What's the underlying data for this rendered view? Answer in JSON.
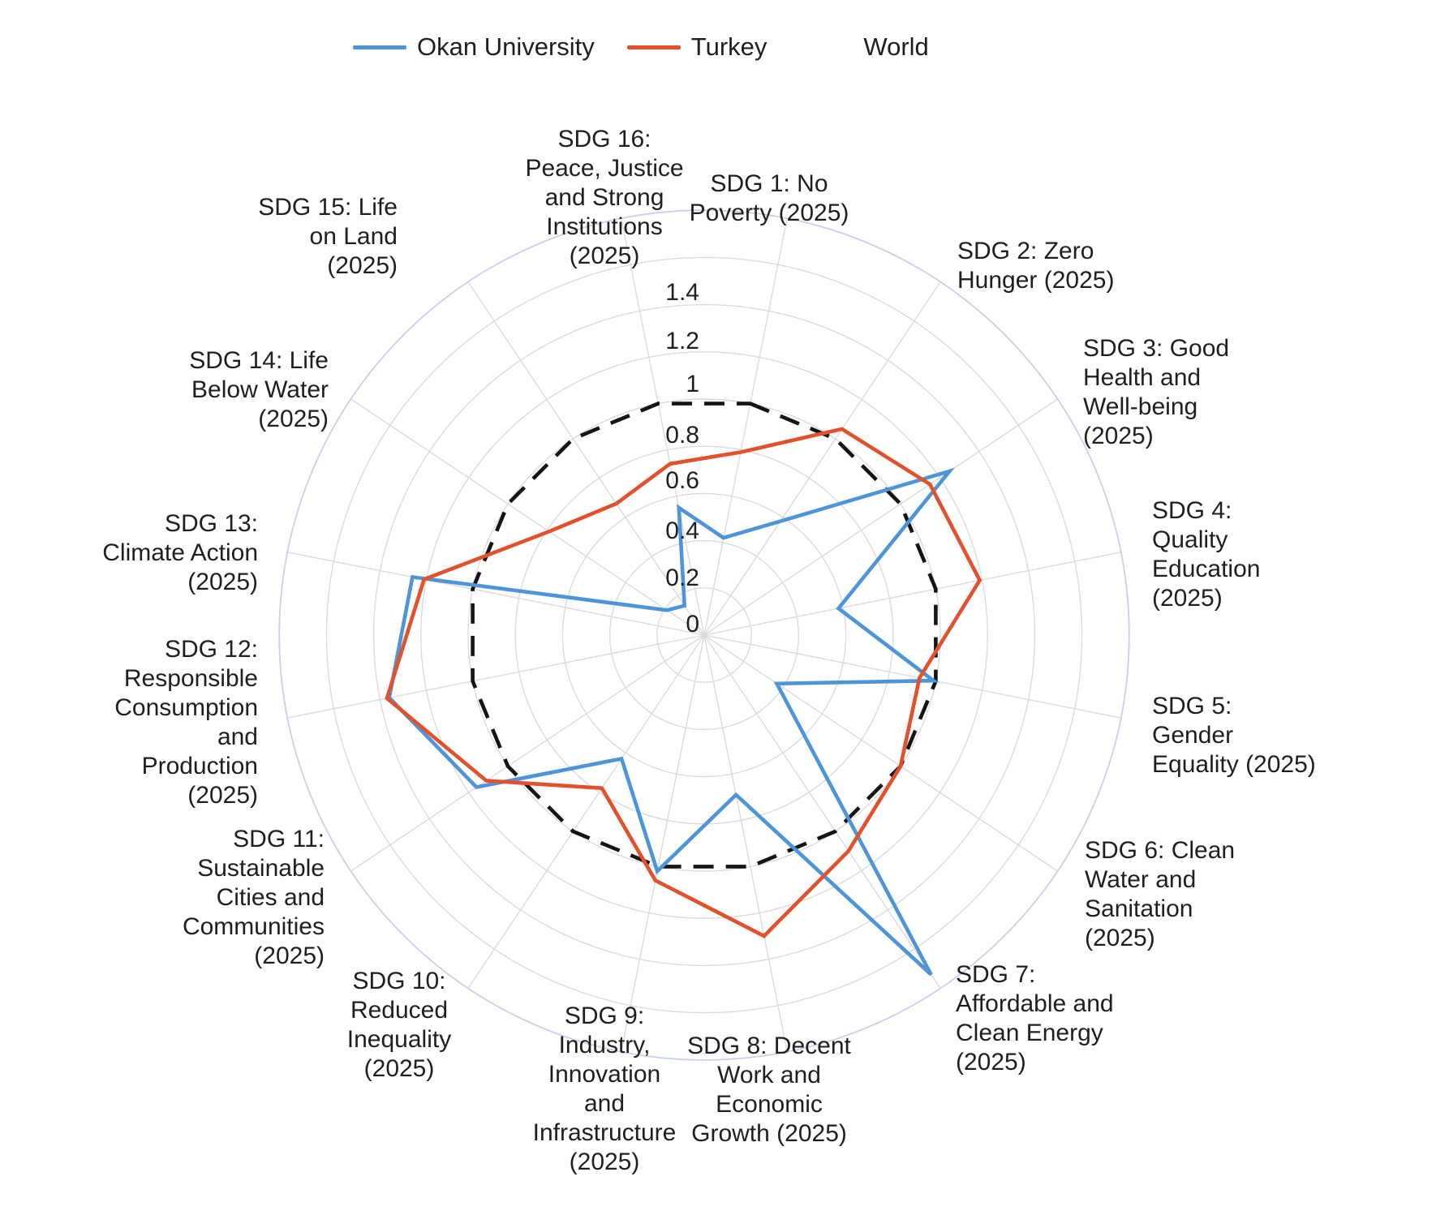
{
  "chart_data": {
    "type": "radar",
    "title": "",
    "legend_position": "top",
    "grid": true,
    "angular_offset_deg": 11.25,
    "r_axis": {
      "min": 0,
      "max": 1.8,
      "tick_step": 0.2,
      "tick_labels": [
        "0",
        "0.2",
        "0.4",
        "0.6",
        "0.8",
        "1",
        "1.2",
        "1.4"
      ]
    },
    "categories": [
      "SDG 1: No\nPoverty (2025)",
      "SDG 2: Zero\nHunger (2025)",
      "SDG 3: Good\nHealth and\nWell-being\n(2025)",
      "SDG 4:\nQuality\nEducation\n(2025)",
      "SDG 5:\nGender\nEquality (2025)",
      "SDG 6: Clean\nWater and\nSanitation\n(2025)",
      "SDG 7:\nAffordable and\nClean Energy\n(2025)",
      "SDG 8: Decent\nWork and\nEconomic\nGrowth (2025)",
      "SDG 9:\nIndustry,\nInnovation\nand\nInfrastructure\n(2025)",
      "SDG 10:\nReduced\nInequality\n(2025)",
      "SDG 11:\nSustainable\nCities and\nCommunities\n(2025)",
      "SDG 12:\nResponsible\nConsumption\nand\nProduction\n(2025)",
      "SDG 13:\nClimate Action\n(2025)",
      "SDG 14: Life\nBelow Water\n(2025)",
      "SDG 15: Life\non Land\n(2025)",
      "SDG 16:\nPeace, Justice\nand Strong\nInstitutions\n(2025)"
    ],
    "series": [
      {
        "name": "Okan University",
        "color": "#4D95D8",
        "line_dash": "solid",
        "values": [
          0.42,
          0.58,
          1.25,
          0.58,
          0.99,
          0.37,
          1.73,
          0.69,
          1.02,
          0.63,
          1.16,
          1.36,
          1.26,
          0.19,
          0.15,
          0.55
        ]
      },
      {
        "name": "Turkey",
        "color": "#E2502C",
        "line_dash": "solid",
        "values": [
          0.79,
          1.05,
          1.15,
          1.19,
          0.93,
          1.0,
          1.1,
          1.3,
          1.06,
          0.78,
          1.11,
          1.37,
          1.21,
          0.79,
          0.67,
          0.74
        ]
      },
      {
        "name": "World",
        "color": "#141414",
        "line_dash": "dashed",
        "values": [
          1.0,
          1.0,
          1.0,
          1.0,
          1.0,
          1.0,
          1.0,
          1.0,
          1.0,
          1.0,
          1.0,
          1.0,
          1.0,
          1.0,
          1.0,
          1.0
        ]
      }
    ],
    "colors": {
      "grid": "#DBDBDB",
      "outer_ring": "#C7D0ED",
      "background": "#FFFFFF",
      "text": "#1F1F1F"
    }
  }
}
